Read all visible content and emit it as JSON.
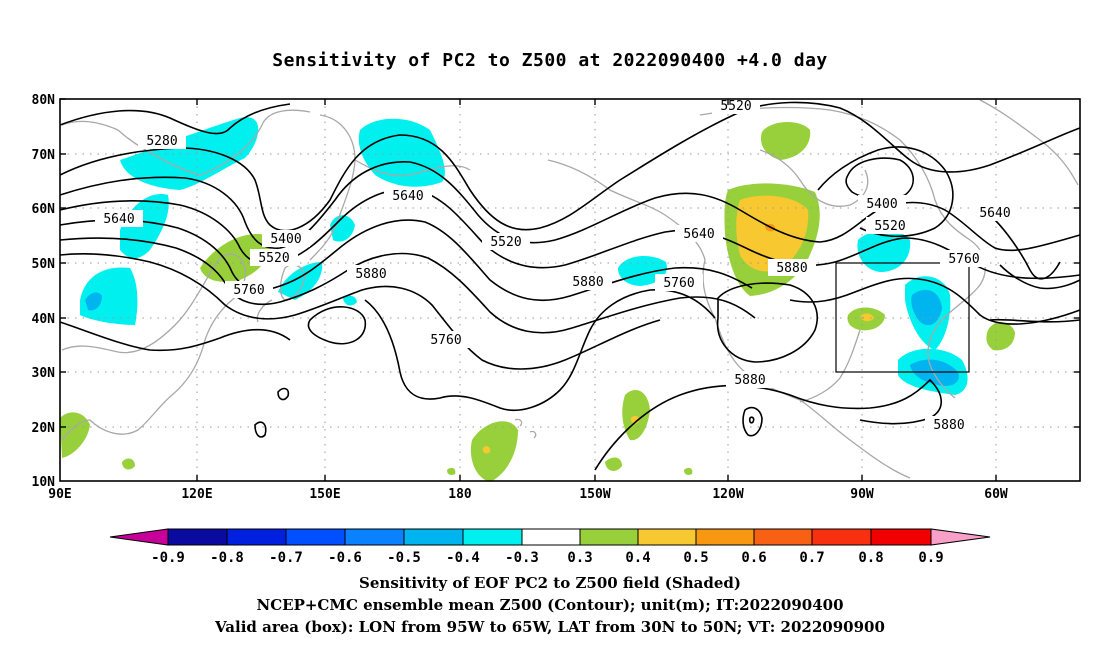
{
  "title": "Sensitivity of PC2 to Z500 at 2022090400 +4.0 day",
  "map": {
    "lat_labels": [
      "80N",
      "70N",
      "60N",
      "50N",
      "40N",
      "30N",
      "20N",
      "10N"
    ],
    "lon_labels": [
      "90E",
      "120E",
      "150E",
      "180",
      "150W",
      "120W",
      "90W",
      "60W"
    ],
    "contour_labels": [
      "5280",
      "5640",
      "5400",
      "5520",
      "5760",
      "5880",
      "5640",
      "5760",
      "5520",
      "5520",
      "5640",
      "5760",
      "5880",
      "5880",
      "5400",
      "5520",
      "5640",
      "5760",
      "5880",
      "5880"
    ],
    "valid_box": {
      "lon_min": -95,
      "lon_max": -65,
      "lat_min": 30,
      "lat_max": 50
    }
  },
  "colorbar": {
    "labels": [
      "-0.9",
      "-0.8",
      "-0.7",
      "-0.6",
      "-0.5",
      "-0.4",
      "-0.3",
      "0.3",
      "0.4",
      "0.5",
      "0.6",
      "0.7",
      "0.8",
      "0.9"
    ],
    "colors": [
      "#c8009a",
      "#0a0aa0",
      "#0020e0",
      "#0050ff",
      "#0a82ff",
      "#00b4f0",
      "#00f0f0",
      "#ffffff",
      "#98d03c",
      "#f8c830",
      "#f89810",
      "#f86014",
      "#f83010",
      "#f00000",
      "#f8a0c8"
    ]
  },
  "shading_colors": {
    "cyan": "#00f0f0",
    "sky": "#00b4f0",
    "blue": "#0a82ff",
    "green": "#98d03c",
    "yellow": "#f8c830",
    "orange": "#f89810"
  },
  "caption": {
    "line1": "Sensitivity of EOF PC2 to Z500 field (Shaded)",
    "line2": "NCEP+CMC ensemble mean Z500 (Contour); unit(m); IT:2022090400",
    "line3": "Valid area (box): LON from 95W to 65W, LAT from 30N to 50N; VT: 2022090900"
  }
}
